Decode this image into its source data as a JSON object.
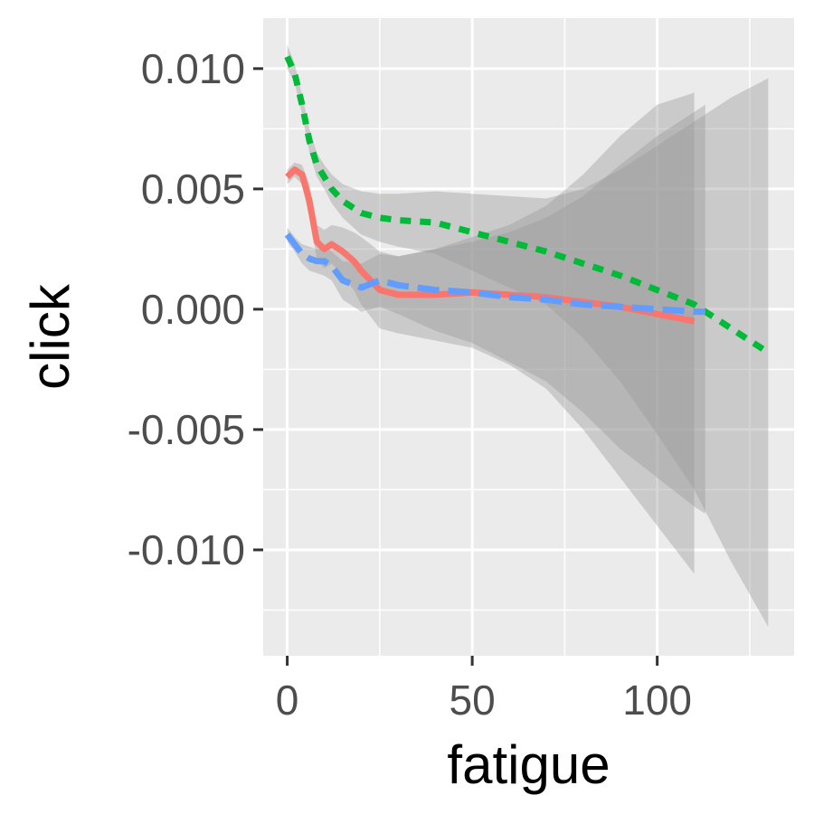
{
  "chart_data": {
    "type": "line",
    "title": "",
    "xlabel": "fatigue",
    "ylabel": "click",
    "xlim": [
      -6.5,
      137
    ],
    "ylim": [
      -0.0144,
      0.0121
    ],
    "grid": true,
    "legend": "none",
    "x_ticks": [
      {
        "value": 0,
        "label": "0"
      },
      {
        "value": 50,
        "label": "50"
      },
      {
        "value": 100,
        "label": "100"
      }
    ],
    "x_minor_ticks": [
      25,
      75,
      125
    ],
    "y_ticks": [
      {
        "value": 0.01,
        "label": "0.010"
      },
      {
        "value": 0.005,
        "label": "0.005"
      },
      {
        "value": 0.0,
        "label": "0.000"
      },
      {
        "value": -0.005,
        "label": "-0.005"
      },
      {
        "value": -0.01,
        "label": "-0.010"
      }
    ],
    "y_minor_ticks": [
      0.0125,
      0.0075,
      0.0025,
      -0.0025,
      -0.0075,
      -0.0125
    ],
    "series": [
      {
        "color": "#F8766D",
        "dash": "solid",
        "x": [
          0,
          2,
          4,
          6,
          8,
          10,
          12,
          15,
          18,
          20,
          25,
          30,
          40,
          50,
          60,
          70,
          80,
          90,
          100,
          110
        ],
        "y": [
          0.0055,
          0.0058,
          0.0056,
          0.0045,
          0.0028,
          0.0025,
          0.0027,
          0.0024,
          0.002,
          0.0016,
          0.0008,
          0.0006,
          0.0006,
          0.0007,
          0.0006,
          0.0005,
          0.0003,
          0.0001,
          -0.0002,
          -0.0005
        ],
        "upper": [
          0.0058,
          0.0061,
          0.006,
          0.0052,
          0.0035,
          0.0033,
          0.0035,
          0.0034,
          0.0032,
          0.003,
          0.0024,
          0.0022,
          0.0025,
          0.003,
          0.0035,
          0.0043,
          0.0056,
          0.0072,
          0.0085,
          0.009
        ],
        "lower": [
          0.0052,
          0.0055,
          0.0052,
          0.0038,
          0.0021,
          0.0017,
          0.0019,
          0.0014,
          0.0008,
          0.0002,
          -0.0008,
          -0.001,
          -0.0013,
          -0.0016,
          -0.0023,
          -0.0033,
          -0.005,
          -0.007,
          -0.009,
          -0.011
        ]
      },
      {
        "color": "#00BA38",
        "dash": "dotted",
        "x": [
          0,
          2,
          4,
          6,
          8,
          10,
          12,
          15,
          20,
          25,
          30,
          40,
          50,
          60,
          70,
          80,
          90,
          100,
          110,
          120,
          130
        ],
        "y": [
          0.0105,
          0.0098,
          0.0085,
          0.007,
          0.006,
          0.0055,
          0.005,
          0.0045,
          0.004,
          0.0038,
          0.0037,
          0.0036,
          0.0032,
          0.0028,
          0.0024,
          0.0019,
          0.0014,
          0.0008,
          0.0002,
          -0.0008,
          -0.0018
        ],
        "upper": [
          0.011,
          0.0102,
          0.0089,
          0.0075,
          0.0065,
          0.006,
          0.0056,
          0.0052,
          0.0049,
          0.0048,
          0.0048,
          0.0049,
          0.0048,
          0.0047,
          0.0046,
          0.005,
          0.0058,
          0.0068,
          0.0078,
          0.0088,
          0.0096
        ],
        "lower": [
          0.01,
          0.0094,
          0.0081,
          0.0065,
          0.0055,
          0.005,
          0.0044,
          0.0038,
          0.0031,
          0.0028,
          0.0026,
          0.0023,
          0.0016,
          0.0009,
          0.0002,
          -0.0012,
          -0.003,
          -0.0052,
          -0.0075,
          -0.0105,
          -0.0132
        ]
      },
      {
        "color": "#619CFF",
        "dash": "dashed",
        "x": [
          0,
          2,
          4,
          6,
          8,
          10,
          12,
          15,
          20,
          25,
          30,
          40,
          50,
          60,
          70,
          80,
          90,
          100,
          110,
          113
        ],
        "y": [
          0.0031,
          0.0027,
          0.0023,
          0.0021,
          0.002,
          0.002,
          0.0018,
          0.0012,
          0.0009,
          0.0012,
          0.001,
          0.0008,
          0.0007,
          0.0005,
          0.0004,
          0.0002,
          0.0001,
          0.0,
          -0.0001,
          -0.0001
        ],
        "upper": [
          0.0034,
          0.003,
          0.0027,
          0.0026,
          0.0025,
          0.0026,
          0.0024,
          0.002,
          0.0019,
          0.0023,
          0.0022,
          0.0025,
          0.0028,
          0.0032,
          0.0038,
          0.0047,
          0.006,
          0.0072,
          0.0082,
          0.0085
        ],
        "lower": [
          0.0028,
          0.0024,
          0.0019,
          0.0016,
          0.0015,
          0.0014,
          0.0012,
          0.0004,
          -0.0001,
          0.0001,
          -0.0002,
          -0.0009,
          -0.0014,
          -0.0022,
          -0.003,
          -0.0043,
          -0.0058,
          -0.007,
          -0.0082,
          -0.0085
        ]
      }
    ]
  }
}
